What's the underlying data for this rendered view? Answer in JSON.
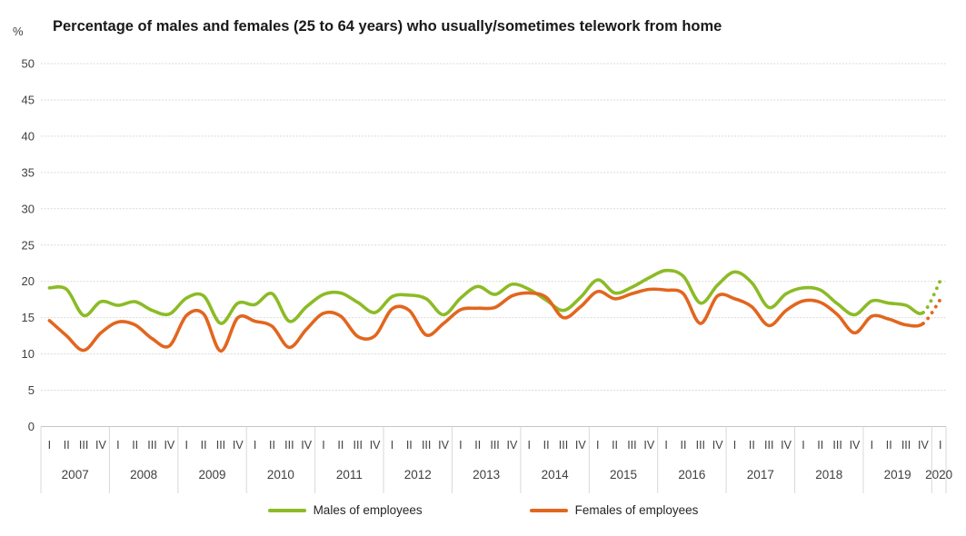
{
  "title": "Percentage of males and females (25 to 64 years) who usually/sometimes telework from home",
  "y_axis": {
    "unit_label": "%",
    "min": 0,
    "max": 50,
    "step": 5
  },
  "legend": [
    {
      "label": "Males of employees",
      "color": "#8CBB26"
    },
    {
      "label": "Females of employees",
      "color": "#E2661F"
    }
  ],
  "colors": {
    "males": "#8CBB26",
    "females": "#E2661F",
    "grid": "#d9d9d9",
    "axis": "#c6c6c6",
    "axis_text": "#404040"
  },
  "chart_data": {
    "type": "line",
    "title": "Percentage of males and females (25 to 64 years) who usually/sometimes telework from home",
    "ylabel": "%",
    "ylim": [
      0,
      50
    ],
    "y_step": 5,
    "grid": true,
    "legend_position": "bottom",
    "x_structure_note": "quarterly data; last point (2020 Q1) drawn as dotted projection segment",
    "quarter_labels": [
      "I",
      "II",
      "III",
      "IV"
    ],
    "years": [
      {
        "label": "2007",
        "quarters": 4
      },
      {
        "label": "2008",
        "quarters": 4
      },
      {
        "label": "2009",
        "quarters": 4
      },
      {
        "label": "2010",
        "quarters": 4
      },
      {
        "label": "2011",
        "quarters": 4
      },
      {
        "label": "2012",
        "quarters": 4
      },
      {
        "label": "2013",
        "quarters": 4
      },
      {
        "label": "2014",
        "quarters": 4
      },
      {
        "label": "2015",
        "quarters": 4
      },
      {
        "label": "2016",
        "quarters": 4
      },
      {
        "label": "2017",
        "quarters": 4
      },
      {
        "label": "2018",
        "quarters": 4
      },
      {
        "label": "2019",
        "quarters": 4
      },
      {
        "label": "2020",
        "quarters": 1
      }
    ],
    "series": [
      {
        "name": "Males of employees",
        "color": "#8CBB26",
        "dotted_tail_points": 1,
        "values": [
          19.1,
          18.9,
          15.3,
          17.2,
          16.7,
          17.2,
          16.0,
          15.5,
          17.7,
          18.0,
          14.2,
          17.0,
          16.8,
          18.3,
          14.5,
          16.5,
          18.2,
          18.4,
          17.1,
          15.7,
          17.9,
          18.1,
          17.6,
          15.4,
          17.7,
          19.3,
          18.2,
          19.6,
          18.9,
          17.4,
          16.0,
          17.8,
          20.2,
          18.4,
          19.2,
          20.5,
          21.5,
          20.7,
          17.0,
          19.5,
          21.3,
          19.8,
          16.4,
          18.3,
          19.1,
          18.8,
          16.9,
          15.4,
          17.3,
          17.0,
          16.7,
          15.7,
          20.1
        ]
      },
      {
        "name": "Females of employees",
        "color": "#E2661F",
        "dotted_tail_points": 1,
        "values": [
          14.6,
          12.5,
          10.5,
          12.9,
          14.4,
          14.0,
          12.1,
          11.1,
          15.3,
          15.5,
          10.4,
          15.0,
          14.5,
          13.8,
          10.9,
          13.4,
          15.6,
          15.2,
          12.4,
          12.5,
          16.2,
          16.0,
          12.6,
          14.2,
          16.1,
          16.3,
          16.4,
          18.0,
          18.4,
          17.8,
          15.0,
          16.5,
          18.6,
          17.6,
          18.3,
          18.9,
          18.8,
          18.3,
          14.2,
          18.0,
          17.6,
          16.5,
          13.9,
          16.0,
          17.3,
          17.1,
          15.4,
          12.9,
          15.2,
          14.8,
          14.0,
          14.2,
          17.5
        ]
      }
    ]
  }
}
